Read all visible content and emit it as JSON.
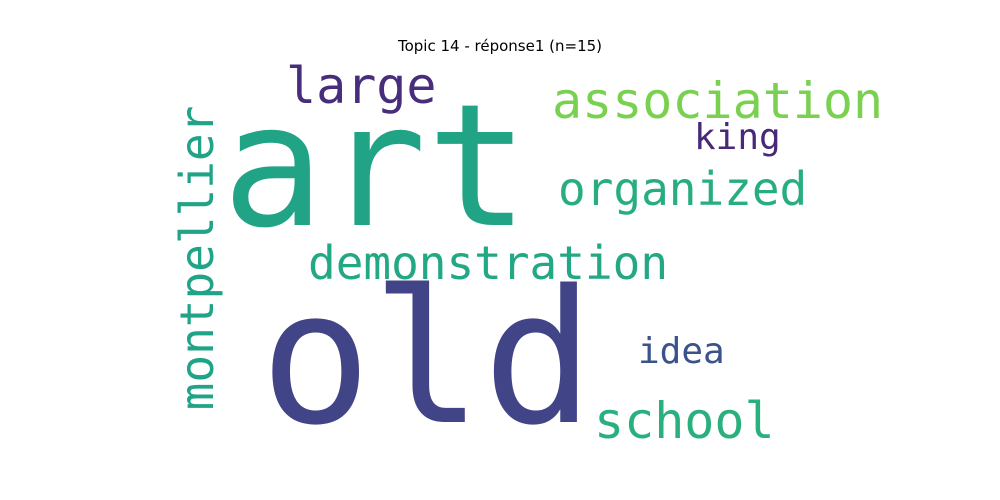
{
  "title": "Topic 14 - réponse1 (n=15)",
  "words": [
    {
      "text": "art",
      "color": "#21a386"
    },
    {
      "text": "old",
      "color": "#414487"
    },
    {
      "text": "large",
      "color": "#472d7b"
    },
    {
      "text": "association",
      "color": "#7ad151"
    },
    {
      "text": "king",
      "color": "#482878"
    },
    {
      "text": "organized",
      "color": "#27ad81"
    },
    {
      "text": "demonstration",
      "color": "#22a884"
    },
    {
      "text": "idea",
      "color": "#3b528b"
    },
    {
      "text": "school",
      "color": "#2ab07f"
    },
    {
      "text": "montpellier",
      "color": "#20a386"
    }
  ]
}
